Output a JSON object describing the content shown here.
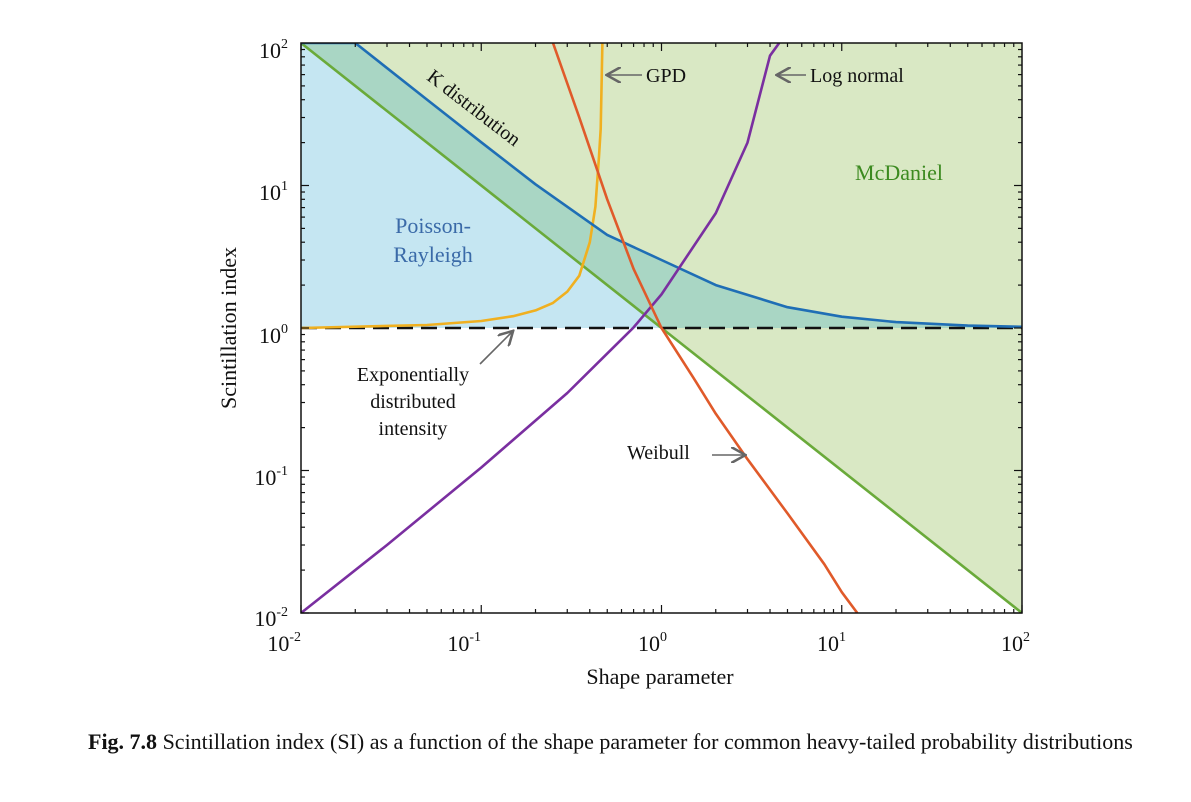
{
  "chart_data": {
    "type": "line",
    "x_scale": "log",
    "y_scale": "log",
    "xlim": [
      0.01,
      100
    ],
    "ylim": [
      0.01,
      100
    ],
    "xlabel": "Shape parameter",
    "ylabel": "Scintillation index",
    "xticks": [
      {
        "base": "10",
        "exp": "-2"
      },
      {
        "base": "10",
        "exp": "-1"
      },
      {
        "base": "10",
        "exp": "0"
      },
      {
        "base": "10",
        "exp": "1"
      },
      {
        "base": "10",
        "exp": "2"
      }
    ],
    "yticks": [
      {
        "base": "10",
        "exp": "2"
      },
      {
        "base": "10",
        "exp": "1"
      },
      {
        "base": "10",
        "exp": "0"
      },
      {
        "base": "10",
        "exp": "-1"
      },
      {
        "base": "10",
        "exp": "-2"
      }
    ],
    "regions": [
      {
        "label": "McDaniel",
        "color": "#d9e8c4"
      },
      {
        "label": "Poisson-",
        "label2": "Rayleigh",
        "color": "#c5e6f2"
      }
    ],
    "overlap_color": "#a9d6c4",
    "series": [
      {
        "name": "K distribution",
        "color": "#1f6eb5",
        "x": [
          0.01,
          0.02,
          0.05,
          0.1,
          0.2,
          0.5,
          1,
          2,
          5,
          10,
          20,
          50,
          100
        ],
        "y": [
          100,
          100,
          40.05,
          20.1,
          10.2,
          4.5,
          3.0,
          2.0,
          1.4,
          1.2,
          1.1,
          1.04,
          1.02
        ]
      },
      {
        "name": "McDaniel boundary",
        "color": "#6aaa3a",
        "x": [
          0.01,
          1,
          100
        ],
        "y": [
          100,
          1,
          0.01
        ]
      },
      {
        "name": "GPD",
        "color": "#f0b020",
        "x": [
          0.01,
          0.05,
          0.1,
          0.15,
          0.2,
          0.25,
          0.3,
          0.35,
          0.4,
          0.43,
          0.45,
          0.46,
          0.47
        ],
        "y": [
          1.0,
          1.05,
          1.12,
          1.21,
          1.33,
          1.5,
          1.8,
          2.33,
          4.0,
          7.1,
          16,
          25,
          100
        ]
      },
      {
        "name": "Log normal",
        "color": "#7a2fa0",
        "x": [
          0.01,
          0.03,
          0.1,
          0.3,
          0.7,
          1,
          2,
          3,
          4,
          4.5
        ],
        "y": [
          0.01,
          0.03,
          0.105,
          0.35,
          1.01,
          1.72,
          6.4,
          20,
          81.5,
          100
        ]
      },
      {
        "name": "Weibull",
        "color": "#e05a2a",
        "x": [
          0.25,
          0.35,
          0.5,
          0.7,
          1,
          1.5,
          2,
          3,
          5,
          8,
          10,
          12.2
        ],
        "y": [
          100,
          30,
          8,
          2.6,
          1.0,
          0.45,
          0.25,
          0.12,
          0.05,
          0.022,
          0.014,
          0.01
        ]
      },
      {
        "name": "Exponentially distributed intensity",
        "color": "#111111",
        "x": [
          0.01,
          100
        ],
        "y": [
          1,
          1
        ]
      }
    ],
    "annotations": {
      "k_dist": "K distribution",
      "gpd": "GPD",
      "lognormal": "Log normal",
      "weibull": "Weibull",
      "mcdaniel": "McDaniel",
      "pr1": "Poisson-",
      "pr2": "Rayleigh",
      "exp1": "Exponentially",
      "exp2": "distributed",
      "exp3": "intensity"
    }
  },
  "caption": {
    "label": "Fig. 7.8",
    "text": "Scintillation index (SI) as a function of the shape parameter for common heavy-tailed probability distributions"
  }
}
